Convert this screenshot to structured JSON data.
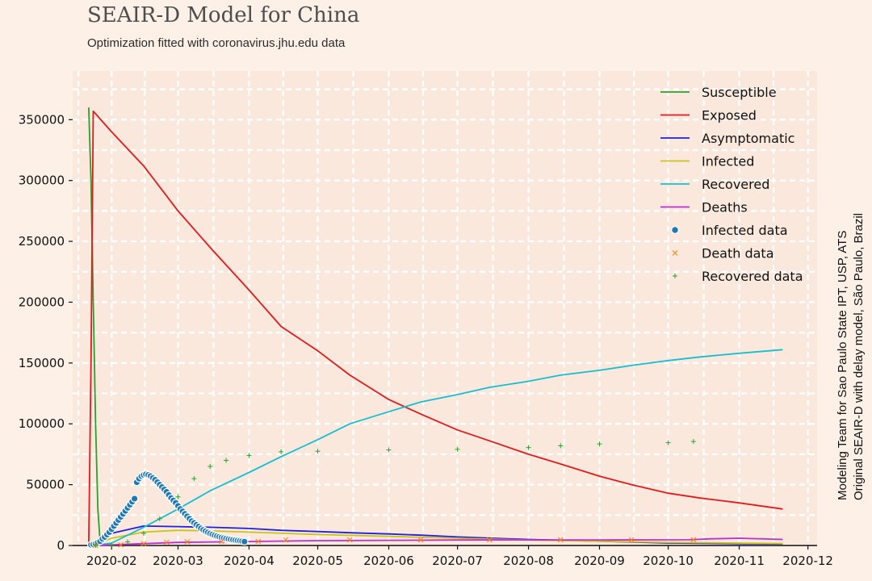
{
  "header": {
    "title": "SEAIR-D Model for China",
    "subtitle": "Optimization fitted with coronavirus.jhu.edu data"
  },
  "side_note": {
    "line1": "Modeling Team for Sao Paulo State IPT, USP, ATS",
    "line2": "Original SEAIR-D with delay model, São Paulo, Brazil"
  },
  "colors": {
    "background": "#fdf1e7",
    "plot_background": "#fae8dc",
    "grid": "#ffffff",
    "susceptible": "#2ca02c",
    "exposed": "#e31a1c",
    "asymptomatic": "#1f1fe0",
    "infected": "#c9c41a",
    "recovered": "#17becf",
    "deaths": "#bf2ccf",
    "infected_data": "#1f77b4",
    "death_data": "#ff7f0e",
    "recovered_data": "#2ca02c"
  },
  "chart_data": {
    "type": "line",
    "title": "SEAIR-D Model for China",
    "subtitle": "Optimization fitted with coronavirus.jhu.edu data",
    "xlabel": "",
    "ylabel": "",
    "x_type": "date",
    "xlim": [
      "2020-01-15",
      "2020-12-05"
    ],
    "ylim": [
      0,
      390000
    ],
    "grid": true,
    "legend_position": "top-right",
    "x_ticks": [
      "2020-02",
      "2020-03",
      "2020-04",
      "2020-05",
      "2020-06",
      "2020-07",
      "2020-08",
      "2020-09",
      "2020-10",
      "2020-11",
      "2020-12"
    ],
    "y_ticks": [
      0,
      50000,
      100000,
      150000,
      200000,
      250000,
      300000,
      350000
    ],
    "y_tick_labels": [
      "0",
      "50000",
      "100000",
      "150000",
      "200000",
      "250000",
      "300000",
      "350000"
    ],
    "legend_items": [
      {
        "label": "Susceptible",
        "color_key": "susceptible",
        "marker": "line"
      },
      {
        "label": "Exposed",
        "color_key": "exposed",
        "marker": "line"
      },
      {
        "label": "Asymptomatic",
        "color_key": "asymptomatic",
        "marker": "line"
      },
      {
        "label": "Infected",
        "color_key": "infected",
        "marker": "line"
      },
      {
        "label": "Recovered",
        "color_key": "recovered",
        "marker": "line"
      },
      {
        "label": "Deaths",
        "color_key": "deaths",
        "marker": "line"
      },
      {
        "label": "Infected data",
        "color_key": "infected_data",
        "marker": "dot"
      },
      {
        "label": "Death data",
        "color_key": "death_data",
        "marker": "x"
      },
      {
        "label": "Recovered data",
        "color_key": "recovered_data",
        "marker": "plus"
      }
    ],
    "series": [
      {
        "name": "Susceptible",
        "color_key": "susceptible",
        "kind": "line",
        "points": [
          [
            "2020-01-22",
            360000
          ],
          [
            "2020-01-23",
            300000
          ],
          [
            "2020-01-24",
            200000
          ],
          [
            "2020-01-25",
            100000
          ],
          [
            "2020-01-26",
            30000
          ],
          [
            "2020-01-27",
            3000
          ]
        ]
      },
      {
        "name": "Exposed",
        "color_key": "exposed",
        "kind": "line",
        "points": [
          [
            "2020-01-22",
            2000
          ],
          [
            "2020-01-23",
            150000
          ],
          [
            "2020-01-24",
            357000
          ],
          [
            "2020-02-01",
            340000
          ],
          [
            "2020-02-15",
            312000
          ],
          [
            "2020-03-01",
            275000
          ],
          [
            "2020-03-15",
            245000
          ],
          [
            "2020-04-01",
            210000
          ],
          [
            "2020-04-15",
            180000
          ],
          [
            "2020-05-01",
            160000
          ],
          [
            "2020-05-15",
            140000
          ],
          [
            "2020-06-01",
            120000
          ],
          [
            "2020-06-15",
            108000
          ],
          [
            "2020-07-01",
            95000
          ],
          [
            "2020-07-15",
            86000
          ],
          [
            "2020-08-01",
            75000
          ],
          [
            "2020-08-15",
            67000
          ],
          [
            "2020-09-01",
            57000
          ],
          [
            "2020-09-15",
            50000
          ],
          [
            "2020-10-01",
            43000
          ],
          [
            "2020-10-15",
            39000
          ],
          [
            "2020-11-01",
            35000
          ],
          [
            "2020-11-20",
            30000
          ]
        ]
      },
      {
        "name": "Asymptomatic",
        "color_key": "asymptomatic",
        "kind": "line",
        "points": [
          [
            "2020-01-24",
            1000
          ],
          [
            "2020-02-01",
            10000
          ],
          [
            "2020-02-15",
            16000
          ],
          [
            "2020-03-01",
            15500
          ],
          [
            "2020-03-15",
            15000
          ],
          [
            "2020-04-01",
            14000
          ],
          [
            "2020-04-15",
            12500
          ],
          [
            "2020-05-01",
            11500
          ],
          [
            "2020-05-15",
            10500
          ],
          [
            "2020-06-01",
            9500
          ],
          [
            "2020-06-15",
            8500
          ],
          [
            "2020-07-01",
            7000
          ],
          [
            "2020-08-01",
            5000
          ],
          [
            "2020-09-01",
            3500
          ],
          [
            "2020-10-01",
            2000
          ],
          [
            "2020-11-01",
            1500
          ],
          [
            "2020-11-20",
            1200
          ]
        ]
      },
      {
        "name": "Infected",
        "color_key": "infected",
        "kind": "line",
        "points": [
          [
            "2020-01-24",
            500
          ],
          [
            "2020-02-01",
            6000
          ],
          [
            "2020-02-15",
            11000
          ],
          [
            "2020-03-01",
            12500
          ],
          [
            "2020-03-15",
            12000
          ],
          [
            "2020-04-01",
            11000
          ],
          [
            "2020-05-01",
            9000
          ],
          [
            "2020-06-01",
            7500
          ],
          [
            "2020-07-01",
            6000
          ],
          [
            "2020-08-01",
            4500
          ],
          [
            "2020-09-01",
            3500
          ],
          [
            "2020-10-01",
            2500
          ],
          [
            "2020-11-01",
            2000
          ],
          [
            "2020-11-20",
            1500
          ]
        ]
      },
      {
        "name": "Recovered",
        "color_key": "recovered",
        "kind": "line",
        "points": [
          [
            "2020-01-24",
            0
          ],
          [
            "2020-02-01",
            2000
          ],
          [
            "2020-02-15",
            15000
          ],
          [
            "2020-03-01",
            30000
          ],
          [
            "2020-03-15",
            45000
          ],
          [
            "2020-04-01",
            60000
          ],
          [
            "2020-04-15",
            73000
          ],
          [
            "2020-05-01",
            87000
          ],
          [
            "2020-05-15",
            100000
          ],
          [
            "2020-06-01",
            110000
          ],
          [
            "2020-06-15",
            118000
          ],
          [
            "2020-07-01",
            124000
          ],
          [
            "2020-07-15",
            130000
          ],
          [
            "2020-08-01",
            135000
          ],
          [
            "2020-08-15",
            140000
          ],
          [
            "2020-09-01",
            144000
          ],
          [
            "2020-09-15",
            148000
          ],
          [
            "2020-10-01",
            152000
          ],
          [
            "2020-10-15",
            155000
          ],
          [
            "2020-11-01",
            158000
          ],
          [
            "2020-11-20",
            161000
          ]
        ]
      },
      {
        "name": "Deaths",
        "color_key": "deaths",
        "kind": "line",
        "points": [
          [
            "2020-01-24",
            0
          ],
          [
            "2020-03-01",
            2500
          ],
          [
            "2020-05-01",
            4000
          ],
          [
            "2020-07-01",
            4500
          ],
          [
            "2020-09-01",
            4600
          ],
          [
            "2020-10-10",
            4700
          ],
          [
            "2020-10-20",
            5500
          ],
          [
            "2020-11-01",
            6000
          ],
          [
            "2020-11-20",
            5000
          ]
        ]
      },
      {
        "name": "Infected data",
        "color_key": "infected_data",
        "kind": "dot",
        "points": [
          [
            "2020-01-23",
            600
          ],
          [
            "2020-01-24",
            1000
          ],
          [
            "2020-01-25",
            1500
          ],
          [
            "2020-01-26",
            2500
          ],
          [
            "2020-01-27",
            3500
          ],
          [
            "2020-01-28",
            5500
          ],
          [
            "2020-01-29",
            7000
          ],
          [
            "2020-01-30",
            9000
          ],
          [
            "2020-01-31",
            11000
          ],
          [
            "2020-02-01",
            13500
          ],
          [
            "2020-02-02",
            16000
          ],
          [
            "2020-02-03",
            18500
          ],
          [
            "2020-02-04",
            21000
          ],
          [
            "2020-02-05",
            23500
          ],
          [
            "2020-02-06",
            26000
          ],
          [
            "2020-02-07",
            28500
          ],
          [
            "2020-02-08",
            31000
          ],
          [
            "2020-02-09",
            33500
          ],
          [
            "2020-02-10",
            36000
          ],
          [
            "2020-02-11",
            38500
          ],
          [
            "2020-02-12",
            52000
          ],
          [
            "2020-02-13",
            55000
          ],
          [
            "2020-02-14",
            57000
          ],
          [
            "2020-02-15",
            58000
          ],
          [
            "2020-02-16",
            58500
          ],
          [
            "2020-02-17",
            58000
          ],
          [
            "2020-02-18",
            57000
          ],
          [
            "2020-02-19",
            55500
          ],
          [
            "2020-02-20",
            54000
          ],
          [
            "2020-02-21",
            52000
          ],
          [
            "2020-02-22",
            50000
          ],
          [
            "2020-02-23",
            48000
          ],
          [
            "2020-02-24",
            46000
          ],
          [
            "2020-02-25",
            44000
          ],
          [
            "2020-02-26",
            41500
          ],
          [
            "2020-02-27",
            39000
          ],
          [
            "2020-02-28",
            37000
          ],
          [
            "2020-02-29",
            35000
          ],
          [
            "2020-03-01",
            32500
          ],
          [
            "2020-03-02",
            30000
          ],
          [
            "2020-03-03",
            28000
          ],
          [
            "2020-03-04",
            26000
          ],
          [
            "2020-03-05",
            24000
          ],
          [
            "2020-03-06",
            22000
          ],
          [
            "2020-03-07",
            20000
          ],
          [
            "2020-03-08",
            18500
          ],
          [
            "2020-03-09",
            17000
          ],
          [
            "2020-03-10",
            15500
          ],
          [
            "2020-03-11",
            14000
          ],
          [
            "2020-03-12",
            12800
          ],
          [
            "2020-03-13",
            11700
          ],
          [
            "2020-03-14",
            10700
          ],
          [
            "2020-03-15",
            9800
          ],
          [
            "2020-03-16",
            9000
          ],
          [
            "2020-03-17",
            8300
          ],
          [
            "2020-03-18",
            7700
          ],
          [
            "2020-03-19",
            7100
          ],
          [
            "2020-03-20",
            6600
          ],
          [
            "2020-03-21",
            6100
          ],
          [
            "2020-03-22",
            5700
          ],
          [
            "2020-03-23",
            5300
          ],
          [
            "2020-03-24",
            5000
          ],
          [
            "2020-03-25",
            4700
          ],
          [
            "2020-03-26",
            4400
          ],
          [
            "2020-03-27",
            4100
          ],
          [
            "2020-03-28",
            3800
          ],
          [
            "2020-03-29",
            3500
          ],
          [
            "2020-03-30",
            3200
          ]
        ]
      },
      {
        "name": "Death data",
        "color_key": "death_data",
        "kind": "x",
        "points": [
          [
            "2020-01-25",
            100
          ],
          [
            "2020-02-05",
            500
          ],
          [
            "2020-02-15",
            1500
          ],
          [
            "2020-02-25",
            2600
          ],
          [
            "2020-03-05",
            3000
          ],
          [
            "2020-03-20",
            3200
          ],
          [
            "2020-04-05",
            3300
          ],
          [
            "2020-04-17",
            4600
          ],
          [
            "2020-05-15",
            4630
          ],
          [
            "2020-06-15",
            4640
          ],
          [
            "2020-07-15",
            4640
          ],
          [
            "2020-08-15",
            4700
          ],
          [
            "2020-09-15",
            4730
          ],
          [
            "2020-10-12",
            4740
          ]
        ]
      },
      {
        "name": "Recovered data",
        "color_key": "recovered_data",
        "kind": "plus",
        "points": [
          [
            "2020-01-25",
            0
          ],
          [
            "2020-02-01",
            300
          ],
          [
            "2020-02-08",
            3000
          ],
          [
            "2020-02-15",
            10000
          ],
          [
            "2020-02-22",
            22000
          ],
          [
            "2020-03-01",
            40000
          ],
          [
            "2020-03-08",
            55000
          ],
          [
            "2020-03-15",
            65000
          ],
          [
            "2020-03-22",
            70000
          ],
          [
            "2020-04-01",
            74000
          ],
          [
            "2020-04-15",
            77000
          ],
          [
            "2020-05-01",
            77500
          ],
          [
            "2020-06-01",
            78500
          ],
          [
            "2020-07-01",
            79000
          ],
          [
            "2020-08-01",
            80500
          ],
          [
            "2020-08-15",
            82000
          ],
          [
            "2020-09-01",
            83500
          ],
          [
            "2020-10-01",
            84500
          ],
          [
            "2020-10-12",
            85500
          ]
        ]
      }
    ]
  }
}
